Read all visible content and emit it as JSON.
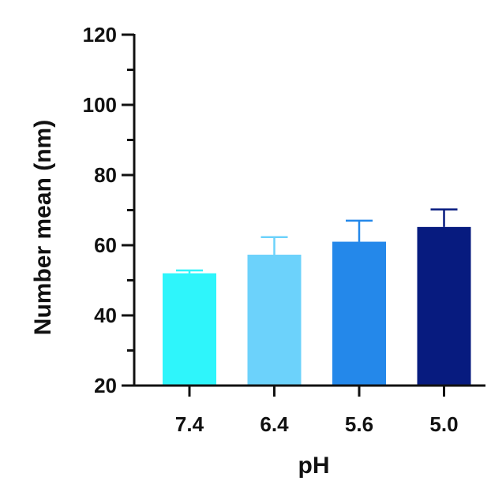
{
  "chart_data": {
    "type": "bar",
    "title": "",
    "xlabel": "pH",
    "ylabel": "Number mean (nm)",
    "categories": [
      "7.4",
      "6.4",
      "5.6",
      "5.0"
    ],
    "values": [
      52,
      57.3,
      61,
      65.2
    ],
    "error_upper": [
      0.8,
      5,
      6,
      5
    ],
    "ylim": [
      20,
      120
    ],
    "y_ticks_major": [
      "20",
      "40",
      "60",
      "80",
      "100",
      "120"
    ],
    "y_minor_step": 10,
    "grid": false,
    "legend": "none",
    "colors": [
      "#2ef5fb",
      "#6cd2fb",
      "#2488ea",
      "#071b7f"
    ],
    "error_bar_color": [
      "#2ef5fb",
      "#6cd2fb",
      "#2488ea",
      "#071b7f"
    ]
  }
}
